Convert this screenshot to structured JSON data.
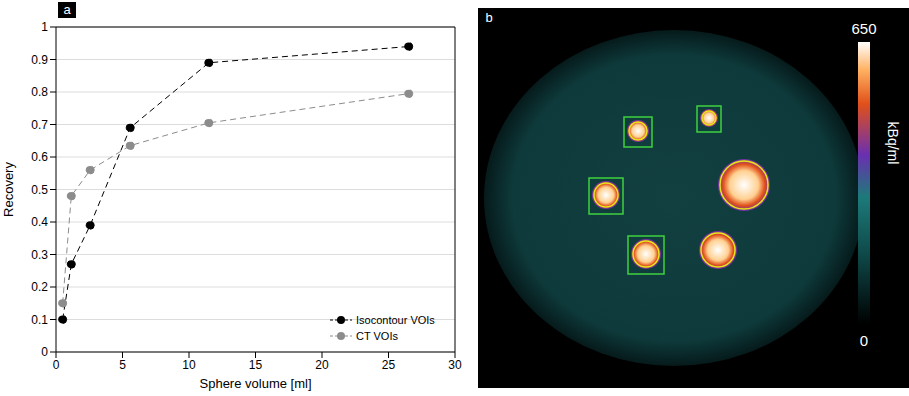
{
  "chart_data": [
    {
      "panel": "a",
      "type": "line",
      "x_label": "Sphere volume [ml]",
      "y_label": "Recovery",
      "x": [
        0.5,
        1.15,
        2.57,
        5.58,
        11.49,
        26.52
      ],
      "series": [
        {
          "name": "Isocontour VOIs",
          "color": "#000000",
          "marker": "circle",
          "line_style": "dashed",
          "values": [
            0.1,
            0.27,
            0.39,
            0.69,
            0.89,
            0.94
          ]
        },
        {
          "name": "CT VOIs",
          "color": "#8c8c8c",
          "marker": "circle",
          "line_style": "dashed",
          "values": [
            0.15,
            0.48,
            0.56,
            0.635,
            0.705,
            0.795
          ]
        }
      ],
      "xlim": [
        0,
        30
      ],
      "xticks": [
        0,
        5,
        10,
        15,
        20,
        25,
        30
      ],
      "ylim": [
        0,
        1
      ],
      "yticks": [
        0,
        0.1,
        0.2,
        0.3,
        0.4,
        0.5,
        0.6,
        0.7,
        0.8,
        0.9,
        1
      ],
      "grid": true,
      "legend": "lower right"
    },
    {
      "panel": "b",
      "type": "image",
      "colorbar_label": "kBq/ml",
      "colorbar_range": [
        0,
        650
      ],
      "colorbar_ticks": [
        0,
        650
      ]
    }
  ]
}
